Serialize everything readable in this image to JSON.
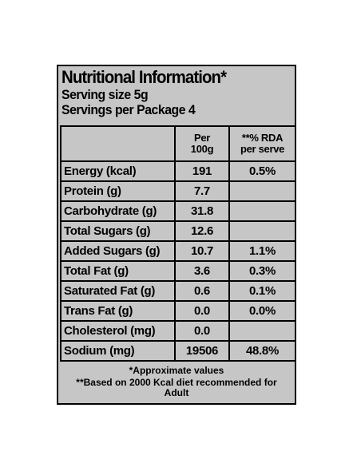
{
  "panel": {
    "title": "Nutritional Information*",
    "serving_size": "Serving size 5g",
    "servings_per_package": "Servings per Package 4"
  },
  "table": {
    "headers": {
      "nutrient": "",
      "per_100g_line1": "Per",
      "per_100g_line2": "100g",
      "rda_line1": "**% RDA",
      "rda_line2": "per serve"
    },
    "rows": [
      {
        "nutrient": "Energy (kcal)",
        "per_100g": "191",
        "rda": "0.5%"
      },
      {
        "nutrient": "Protein (g)",
        "per_100g": "7.7",
        "rda": ""
      },
      {
        "nutrient": "Carbohydrate (g)",
        "per_100g": "31.8",
        "rda": ""
      },
      {
        "nutrient": "Total Sugars (g)",
        "per_100g": "12.6",
        "rda": ""
      },
      {
        "nutrient": "Added Sugars (g)",
        "per_100g": "10.7",
        "rda": "1.1%"
      },
      {
        "nutrient": "Total Fat (g)",
        "per_100g": "3.6",
        "rda": "0.3%"
      },
      {
        "nutrient": "Saturated Fat (g)",
        "per_100g": "0.6",
        "rda": "0.1%"
      },
      {
        "nutrient": "Trans Fat (g)",
        "per_100g": "0.0",
        "rda": "0.0%"
      },
      {
        "nutrient": "Cholesterol (mg)",
        "per_100g": "0.0",
        "rda": ""
      },
      {
        "nutrient": "Sodium (mg)",
        "per_100g": "19506",
        "rda": "48.8%"
      }
    ]
  },
  "footnotes": {
    "approx": "*Approximate values",
    "based_on": "**Based on 2000 Kcal diet recommended for Adult"
  }
}
